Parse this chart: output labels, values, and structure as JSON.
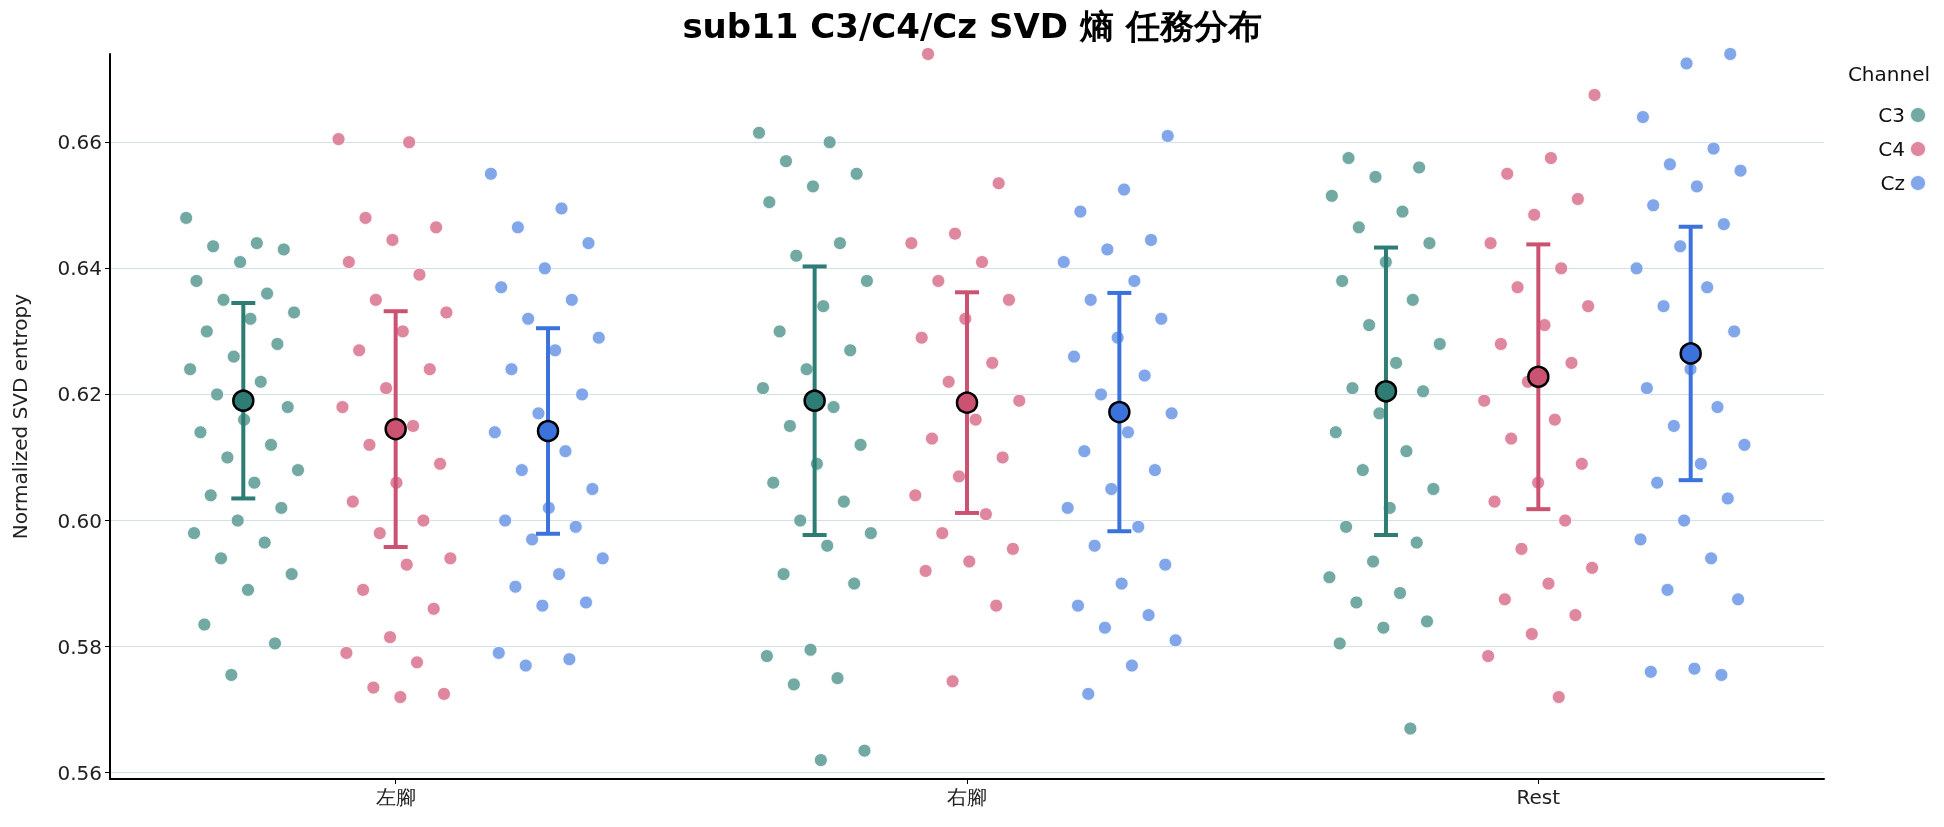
{
  "chart_data": {
    "type": "scatter",
    "title": "sub11 C3/C4/Cz SVD 熵 任務分布",
    "ylabel": "Normalized SVD entropy",
    "legend_title": "Channel",
    "legend": "top right",
    "grid": "y",
    "marker": "circle",
    "categories": [
      "左腳",
      "右腳",
      "Rest"
    ],
    "ylim": [
      0.559,
      0.674
    ],
    "yticks": [
      {
        "value": 0.56,
        "label": "0.56"
      },
      {
        "value": 0.58,
        "label": "0.58"
      },
      {
        "value": 0.6,
        "label": "0.60"
      },
      {
        "value": 0.62,
        "label": "0.62"
      },
      {
        "value": 0.64,
        "label": "0.64"
      },
      {
        "value": 0.66,
        "label": "0.66"
      }
    ],
    "series": [
      {
        "name": "C3",
        "color": "#5a9a93",
        "x": [
          "左腳",
          "左腳",
          "左腳",
          "左腳",
          "左腳",
          "左腳",
          "左腳",
          "左腳",
          "左腳",
          "左腳",
          "左腳",
          "左腳",
          "左腳",
          "左腳",
          "左腳",
          "左腳",
          "左腳",
          "左腳",
          "左腳",
          "左腳",
          "左腳",
          "左腳",
          "左腳",
          "左腳",
          "左腳",
          "左腳",
          "左腳",
          "左腳",
          "左腳",
          "左腳",
          "左腳",
          "左腳",
          "左腳",
          "左腳",
          "右腳",
          "右腳",
          "右腳",
          "右腳",
          "右腳",
          "右腳",
          "右腳",
          "右腳",
          "右腳",
          "右腳",
          "右腳",
          "右腳",
          "右腳",
          "右腳",
          "右腳",
          "右腳",
          "右腳",
          "右腳",
          "右腳",
          "右腳",
          "右腳",
          "右腳",
          "右腳",
          "右腳",
          "右腳",
          "右腳",
          "右腳",
          "右腳",
          "右腳",
          "右腳",
          "右腳",
          "Rest",
          "Rest",
          "Rest",
          "Rest",
          "Rest",
          "Rest",
          "Rest",
          "Rest",
          "Rest",
          "Rest",
          "Rest",
          "Rest",
          "Rest",
          "Rest",
          "Rest",
          "Rest",
          "Rest",
          "Rest",
          "Rest",
          "Rest",
          "Rest",
          "Rest",
          "Rest",
          "Rest",
          "Rest",
          "Rest",
          "Rest",
          "Rest",
          "Rest",
          "Rest",
          "Rest"
        ],
        "values": [
          0.648,
          0.644,
          0.6435,
          0.643,
          0.641,
          0.638,
          0.636,
          0.635,
          0.633,
          0.632,
          0.63,
          0.628,
          0.626,
          0.624,
          0.622,
          0.62,
          0.618,
          0.616,
          0.614,
          0.612,
          0.61,
          0.608,
          0.606,
          0.604,
          0.602,
          0.6,
          0.598,
          0.5965,
          0.594,
          0.5915,
          0.589,
          0.5835,
          0.5805,
          0.5755,
          0.6615,
          0.66,
          0.657,
          0.655,
          0.653,
          0.6505,
          0.644,
          0.642,
          0.638,
          0.634,
          0.63,
          0.627,
          0.624,
          0.621,
          0.618,
          0.615,
          0.612,
          0.609,
          0.606,
          0.603,
          0.6,
          0.598,
          0.596,
          0.5915,
          0.59,
          0.5795,
          0.5785,
          0.575,
          0.574,
          0.5635,
          0.562,
          0.6575,
          0.656,
          0.6545,
          0.6515,
          0.649,
          0.6465,
          0.644,
          0.641,
          0.638,
          0.635,
          0.631,
          0.628,
          0.625,
          0.621,
          0.6205,
          0.617,
          0.614,
          0.611,
          0.608,
          0.605,
          0.602,
          0.599,
          0.5965,
          0.5935,
          0.591,
          0.5885,
          0.587,
          0.584,
          0.583,
          0.5805,
          0.567
        ]
      },
      {
        "name": "C4",
        "color": "#d9728e",
        "x": [
          "左腳",
          "左腳",
          "左腳",
          "左腳",
          "左腳",
          "左腳",
          "左腳",
          "左腳",
          "左腳",
          "左腳",
          "左腳",
          "左腳",
          "左腳",
          "左腳",
          "左腳",
          "左腳",
          "左腳",
          "左腳",
          "左腳",
          "左腳",
          "左腳",
          "左腳",
          "左腳",
          "左腳",
          "左腳",
          "左腳",
          "左腳",
          "左腳",
          "左腳",
          "左腳",
          "左腳",
          "右腳",
          "右腳",
          "右腳",
          "右腳",
          "右腳",
          "右腳",
          "右腳",
          "右腳",
          "右腳",
          "右腳",
          "右腳",
          "右腳",
          "右腳",
          "右腳",
          "右腳",
          "右腳",
          "右腳",
          "右腳",
          "右腳",
          "右腳",
          "右腳",
          "右腳",
          "右腳",
          "右腳",
          "Rest",
          "Rest",
          "Rest",
          "Rest",
          "Rest",
          "Rest",
          "Rest",
          "Rest",
          "Rest",
          "Rest",
          "Rest",
          "Rest",
          "Rest",
          "Rest",
          "Rest",
          "Rest",
          "Rest",
          "Rest",
          "Rest",
          "Rest",
          "Rest",
          "Rest",
          "Rest",
          "Rest",
          "Rest",
          "Rest",
          "Rest",
          "Rest"
        ],
        "values": [
          0.6605,
          0.66,
          0.648,
          0.6465,
          0.6445,
          0.641,
          0.639,
          0.635,
          0.633,
          0.63,
          0.627,
          0.624,
          0.621,
          0.618,
          0.615,
          0.612,
          0.609,
          0.606,
          0.603,
          0.6,
          0.598,
          0.594,
          0.593,
          0.589,
          0.586,
          0.5815,
          0.579,
          0.5775,
          0.5735,
          0.5725,
          0.572,
          0.674,
          0.6535,
          0.6455,
          0.644,
          0.641,
          0.638,
          0.635,
          0.632,
          0.629,
          0.625,
          0.622,
          0.619,
          0.616,
          0.613,
          0.61,
          0.607,
          0.604,
          0.601,
          0.598,
          0.5955,
          0.5935,
          0.592,
          0.5865,
          0.5745,
          0.6675,
          0.6575,
          0.655,
          0.651,
          0.6485,
          0.644,
          0.64,
          0.637,
          0.634,
          0.631,
          0.628,
          0.625,
          0.622,
          0.619,
          0.616,
          0.613,
          0.609,
          0.606,
          0.603,
          0.6,
          0.5955,
          0.5925,
          0.59,
          0.5875,
          0.585,
          0.582,
          0.5785,
          0.572
        ]
      },
      {
        "name": "Cz",
        "color": "#6c96e6",
        "x": [
          "左腳",
          "左腳",
          "左腳",
          "左腳",
          "左腳",
          "左腳",
          "左腳",
          "左腳",
          "左腳",
          "左腳",
          "左腳",
          "左腳",
          "左腳",
          "左腳",
          "左腳",
          "左腳",
          "左腳",
          "左腳",
          "左腳",
          "左腳",
          "左腳",
          "左腳",
          "左腳",
          "左腳",
          "左腳",
          "左腳",
          "左腳",
          "左腳",
          "左腳",
          "右腳",
          "右腳",
          "右腳",
          "右腳",
          "右腳",
          "右腳",
          "右腳",
          "右腳",
          "右腳",
          "右腳",
          "右腳",
          "右腳",
          "右腳",
          "右腳",
          "右腳",
          "右腳",
          "右腳",
          "右腳",
          "右腳",
          "右腳",
          "右腳",
          "右腳",
          "右腳",
          "右腳",
          "右腳",
          "右腳",
          "右腳",
          "右腳",
          "右腳",
          "Rest",
          "Rest",
          "Rest",
          "Rest",
          "Rest",
          "Rest",
          "Rest",
          "Rest",
          "Rest",
          "Rest",
          "Rest",
          "Rest",
          "Rest",
          "Rest",
          "Rest",
          "Rest",
          "Rest",
          "Rest",
          "Rest",
          "Rest",
          "Rest",
          "Rest",
          "Rest",
          "Rest",
          "Rest",
          "Rest",
          "Rest",
          "Rest",
          "Rest",
          "Rest"
        ],
        "values": [
          0.655,
          0.6495,
          0.6465,
          0.644,
          0.64,
          0.637,
          0.635,
          0.632,
          0.629,
          0.627,
          0.624,
          0.62,
          0.617,
          0.614,
          0.611,
          0.608,
          0.605,
          0.602,
          0.6,
          0.599,
          0.597,
          0.594,
          0.5915,
          0.5895,
          0.587,
          0.5865,
          0.579,
          0.578,
          0.577,
          0.661,
          0.6525,
          0.649,
          0.6445,
          0.643,
          0.641,
          0.638,
          0.635,
          0.632,
          0.629,
          0.626,
          0.623,
          0.62,
          0.617,
          0.614,
          0.611,
          0.608,
          0.605,
          0.602,
          0.599,
          0.596,
          0.593,
          0.59,
          0.5865,
          0.585,
          0.583,
          0.581,
          0.577,
          0.5725,
          0.674,
          0.6725,
          0.664,
          0.659,
          0.6565,
          0.6555,
          0.653,
          0.65,
          0.647,
          0.6435,
          0.64,
          0.637,
          0.634,
          0.63,
          0.624,
          0.621,
          0.618,
          0.615,
          0.612,
          0.609,
          0.606,
          0.6035,
          0.6,
          0.597,
          0.594,
          0.589,
          0.5875,
          0.5765,
          0.576,
          0.5755
        ]
      },
      {
        "color": "#2e7d75",
        "x": [
          "左腳",
          "右腳",
          "Rest"
        ],
        "values": [
          0.619,
          0.619,
          0.6205
        ],
        "errors": [
          0.0155,
          0.0213,
          0.0228
        ]
      },
      {
        "color": "#cc5272",
        "x": [
          "左腳",
          "右腳",
          "Rest"
        ],
        "values": [
          0.6145,
          0.6187,
          0.6228
        ],
        "errors": [
          0.0187,
          0.0175,
          0.021
        ]
      },
      {
        "color": "#3b72dc",
        "x": [
          "左腳",
          "右腳",
          "Rest"
        ],
        "values": [
          0.6142,
          0.6172,
          0.6265
        ],
        "errors": [
          0.0163,
          0.0189,
          0.0201
        ]
      }
    ]
  }
}
